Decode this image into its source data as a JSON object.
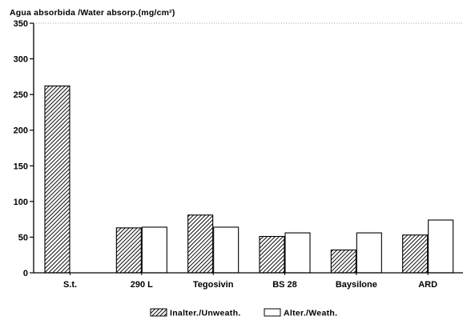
{
  "chart_data": {
    "type": "bar",
    "title": "",
    "ylabel": "Agua absorbida /Water absorp.(mg/cm²)",
    "xlabel": "",
    "ylim": [
      0,
      350
    ],
    "yticks": [
      0,
      50,
      100,
      150,
      200,
      250,
      300,
      350
    ],
    "grid": false,
    "legend_position": "bottom-center",
    "categories": [
      "S.t.",
      "290 L",
      "Tegosivin",
      "BS 28",
      "Baysilone",
      "ARD"
    ],
    "series": [
      {
        "name": "Inalter./Unweath.",
        "values": [
          262,
          63,
          81,
          51,
          32,
          53
        ],
        "pattern": "diagonal-hatch",
        "color": "#000000"
      },
      {
        "name": "Alter./Weath.",
        "values": [
          null,
          64,
          64,
          56,
          56,
          74
        ],
        "pattern": "none",
        "color": "#ffffff"
      }
    ]
  }
}
